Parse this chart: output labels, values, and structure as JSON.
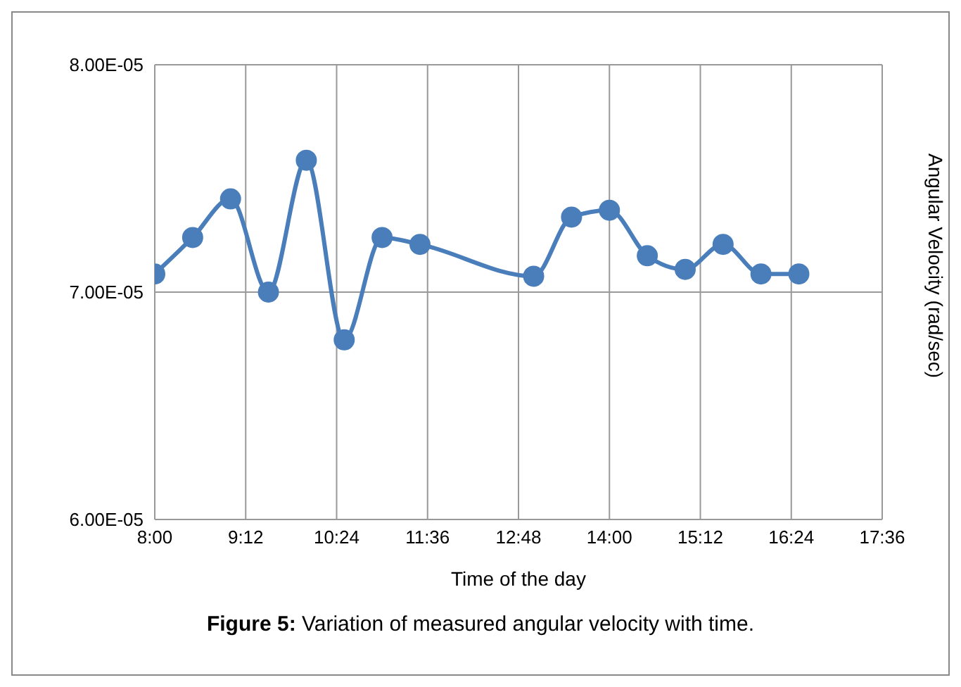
{
  "chart_data": {
    "type": "line",
    "xlabel": "Time of the day",
    "ylabel": "Angular Velocity (rad/sec)",
    "x": [
      8.0,
      8.5,
      9.0,
      9.5,
      10.0,
      10.5,
      11.0,
      11.5,
      13.0,
      13.5,
      14.0,
      14.5,
      15.0,
      15.5,
      16.0,
      16.5
    ],
    "series": [
      {
        "color": "#4a7ebb",
        "values": [
          7.08e-05,
          7.24e-05,
          7.41e-05,
          7e-05,
          7.58e-05,
          6.79e-05,
          7.24e-05,
          7.21e-05,
          7.07e-05,
          7.33e-05,
          7.36e-05,
          7.16e-05,
          7.1e-05,
          7.21e-05,
          7.08e-05,
          7.08e-05
        ]
      }
    ],
    "xlim": [
      8,
      17.6
    ],
    "xticks": [
      {
        "value": 8,
        "label": "8:00"
      },
      {
        "value": 9.2,
        "label": "9:12"
      },
      {
        "value": 10.4,
        "label": "10:24"
      },
      {
        "value": 11.6,
        "label": "11:36"
      },
      {
        "value": 12.8,
        "label": "12:48"
      },
      {
        "value": 14,
        "label": "14:00"
      },
      {
        "value": 15.2,
        "label": "15:12"
      },
      {
        "value": 16.4,
        "label": "16:24"
      },
      {
        "value": 17.6,
        "label": "17:36"
      }
    ],
    "ylim": [
      6e-05,
      8e-05
    ],
    "yticks": [
      {
        "value": 6e-05,
        "label": "6.00E-05"
      },
      {
        "value": 7e-05,
        "label": "7.00E-05"
      },
      {
        "value": 8e-05,
        "label": "8.00E-05"
      }
    ],
    "grid": true,
    "marker": "circle",
    "line_style": "solid",
    "annotations": [
      "Figure 5: Variation of measured angular velocity with time."
    ]
  }
}
